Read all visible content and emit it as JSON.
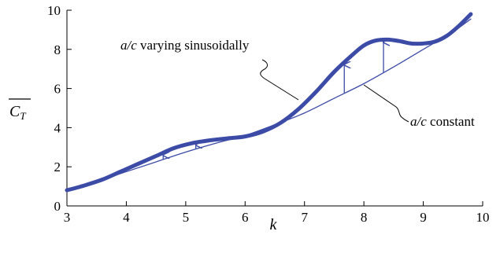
{
  "chart_data": {
    "type": "line",
    "xlabel": "k",
    "ylabel": "C_T",
    "xlim": [
      3,
      10
    ],
    "ylim": [
      0,
      10
    ],
    "xticks": [
      "3",
      "4",
      "5",
      "6",
      "7",
      "8",
      "9",
      "10"
    ],
    "yticks": [
      "0",
      "2",
      "4",
      "6",
      "8",
      "10"
    ],
    "grid": false,
    "series": [
      {
        "name": "a/c varying sinusoidally",
        "style": "thick",
        "color": "#3c4ba6",
        "x": [
          3.0,
          3.3,
          3.6,
          3.9,
          4.2,
          4.5,
          4.8,
          5.1,
          5.4,
          5.7,
          6.0,
          6.3,
          6.6,
          6.9,
          7.2,
          7.5,
          7.8,
          8.0,
          8.2,
          8.4,
          8.6,
          8.8,
          9.0,
          9.2,
          9.4,
          9.6,
          9.8
        ],
        "y": [
          0.8,
          1.05,
          1.35,
          1.75,
          2.15,
          2.55,
          2.95,
          3.2,
          3.35,
          3.45,
          3.55,
          3.8,
          4.25,
          4.95,
          5.85,
          6.85,
          7.7,
          8.2,
          8.45,
          8.5,
          8.42,
          8.3,
          8.3,
          8.4,
          8.7,
          9.2,
          9.8
        ]
      },
      {
        "name": "a/c constant",
        "style": "thin",
        "color": "#3c4ba6",
        "x": [
          3.0,
          3.5,
          4.0,
          4.5,
          5.0,
          5.5,
          6.0,
          6.5,
          7.0,
          7.5,
          8.0,
          8.5,
          9.0,
          9.5,
          9.8
        ],
        "y": [
          0.8,
          1.25,
          1.75,
          2.25,
          2.75,
          3.2,
          3.6,
          4.15,
          4.75,
          5.5,
          6.25,
          7.1,
          8.0,
          8.9,
          9.55
        ]
      }
    ],
    "arrows_at_x": [
      4.62,
      5.17,
      7.67,
      8.33
    ],
    "annotations": [
      {
        "italic": "a/c",
        "text": " varying sinusoidally"
      },
      {
        "italic": "a/c",
        "text": " constant"
      }
    ]
  }
}
